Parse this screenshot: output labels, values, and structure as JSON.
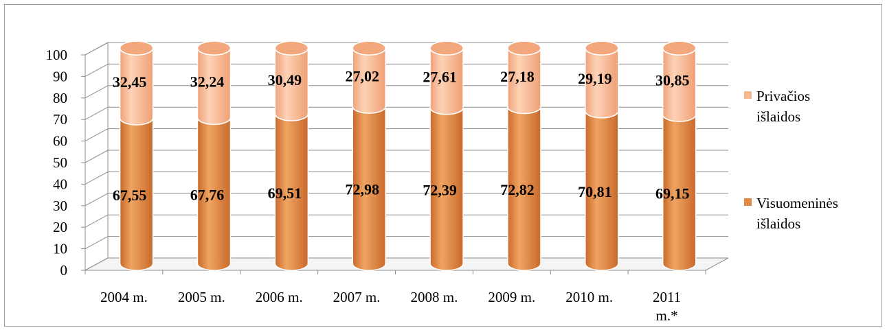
{
  "chart_data": {
    "type": "bar",
    "stacked": true,
    "style": "3d-cylinder",
    "categories": [
      "2004 m.",
      "2005 m.",
      "2006 m.",
      "2007 m.",
      "2008 m.",
      "2009 m.",
      "2010 m.",
      "2011 m.*"
    ],
    "series": [
      {
        "name": "Visuomeninės išlaidos",
        "color": "#e08a44",
        "values": [
          67.55,
          67.76,
          69.51,
          72.98,
          72.39,
          72.82,
          70.81,
          69.15
        ],
        "labels": [
          "67,55",
          "67,76",
          "69,51",
          "72,98",
          "72,39",
          "72,82",
          "70,81",
          "69,15"
        ]
      },
      {
        "name": "Privačios išlaidos",
        "color": "#f8b88f",
        "values": [
          32.45,
          32.24,
          30.49,
          27.02,
          27.61,
          27.18,
          29.19,
          30.85
        ],
        "labels": [
          "32,45",
          "32,24",
          "30,49",
          "27,02",
          "27,61",
          "27,18",
          "29,19",
          "30,85"
        ]
      }
    ],
    "ylim": [
      0,
      100
    ],
    "yticks": [
      0,
      10,
      20,
      30,
      40,
      50,
      60,
      70,
      80,
      90,
      100
    ],
    "grid": true,
    "legend_position": "right",
    "title": "",
    "xlabel": "",
    "ylabel": ""
  }
}
